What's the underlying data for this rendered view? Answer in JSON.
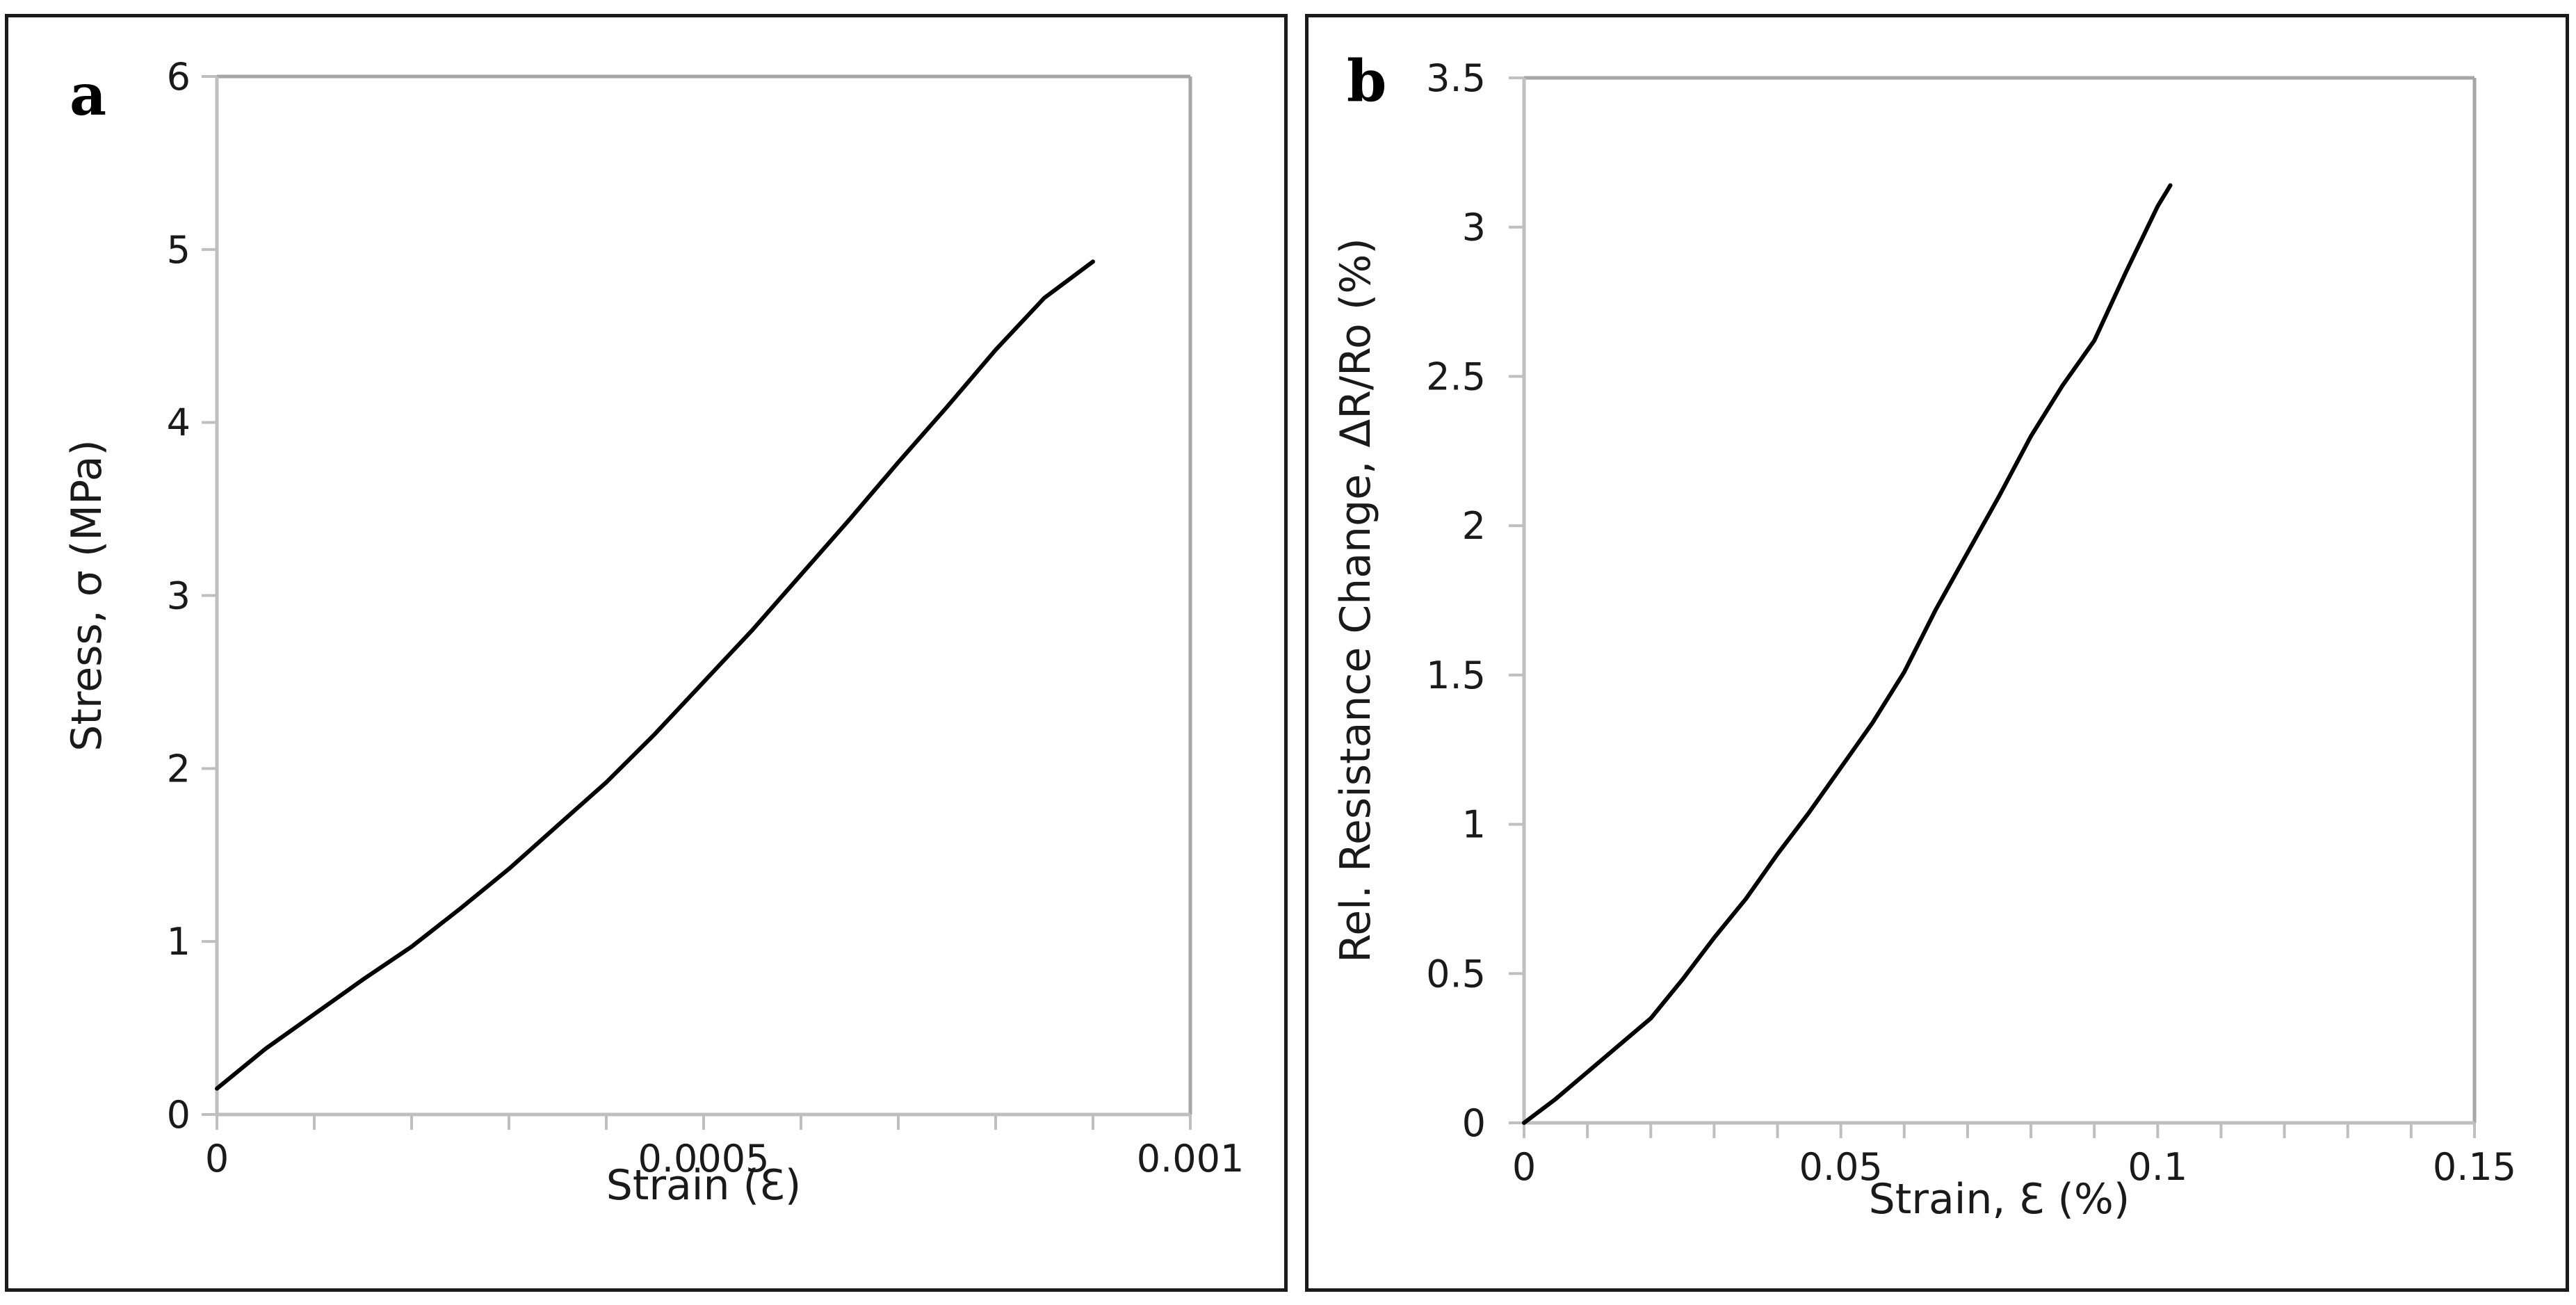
{
  "chart_data": [
    {
      "type": "line",
      "panel_label": "a",
      "xlabel": "Strain (Ɛ)",
      "ylabel": "Stress, σ  (MPa)",
      "xlim": [
        0,
        0.001
      ],
      "ylim": [
        0,
        6
      ],
      "x_ticks": [
        0,
        0.0005,
        0.001
      ],
      "x_tick_labels": [
        "0",
        "0.0005",
        "0.001"
      ],
      "x_minor_step": 0.0001,
      "y_ticks": [
        0,
        1,
        2,
        3,
        4,
        5,
        6
      ],
      "y_tick_labels": [
        "0",
        "1",
        "2",
        "3",
        "4",
        "5",
        "6"
      ],
      "grid": false,
      "colors": {
        "line": "#000000",
        "axis": "#bfbfbf",
        "frame": "#a6a6a6"
      },
      "series": [
        {
          "x": [
            0,
            5e-05,
            0.0001,
            0.00015,
            0.0002,
            0.00025,
            0.0003,
            0.00035,
            0.0004,
            0.00045,
            0.0005,
            0.00055,
            0.0006,
            0.00065,
            0.0007,
            0.00075,
            0.0008,
            0.00085,
            0.0009
          ],
          "y": [
            0.15,
            0.38,
            0.58,
            0.78,
            0.97,
            1.19,
            1.42,
            1.67,
            1.92,
            2.2,
            2.5,
            2.8,
            3.12,
            3.44,
            3.77,
            4.09,
            4.42,
            4.72,
            4.93
          ]
        }
      ]
    },
    {
      "type": "line",
      "panel_label": "b",
      "xlabel": "Strain, Ɛ (%)",
      "ylabel": "Rel. Resistance Change, ΔR/Ro (%)",
      "xlim": [
        0,
        0.15
      ],
      "ylim": [
        0,
        3.5
      ],
      "x_ticks": [
        0,
        0.05,
        0.1,
        0.15
      ],
      "x_tick_labels": [
        "0",
        "0.05",
        "0.1",
        "0.15"
      ],
      "x_minor_step": 0.01,
      "y_ticks": [
        0,
        0.5,
        1,
        1.5,
        2,
        2.5,
        3,
        3.5
      ],
      "y_tick_labels": [
        "0",
        "0.5",
        "1",
        "1.5",
        "2",
        "2.5",
        "3",
        "3.5"
      ],
      "grid": false,
      "colors": {
        "line": "#000000",
        "axis": "#bfbfbf",
        "frame": "#a6a6a6"
      },
      "series": [
        {
          "x": [
            0,
            0.005,
            0.01,
            0.015,
            0.02,
            0.025,
            0.03,
            0.035,
            0.04,
            0.045,
            0.05,
            0.055,
            0.06,
            0.065,
            0.07,
            0.075,
            0.08,
            0.085,
            0.09,
            0.095,
            0.1,
            0.102
          ],
          "y": [
            0,
            0.08,
            0.17,
            0.26,
            0.35,
            0.48,
            0.62,
            0.75,
            0.9,
            1.04,
            1.19,
            1.34,
            1.51,
            1.72,
            1.91,
            2.1,
            2.3,
            2.47,
            2.62,
            2.85,
            3.07,
            3.14
          ]
        }
      ]
    }
  ]
}
